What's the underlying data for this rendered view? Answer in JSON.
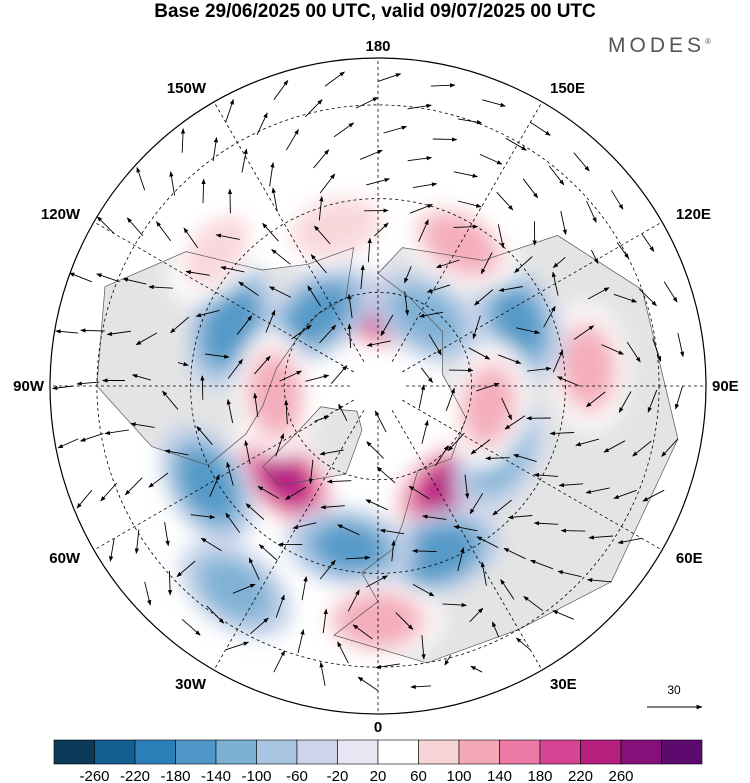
{
  "title": "Base 29/06/2025 00 UTC, valid 09/07/2025 00 UTC",
  "brand": "MODES",
  "brand_mark": "®",
  "longitude_labels": [
    {
      "text": "180",
      "lon": 180
    },
    {
      "text": "150E",
      "lon": 150
    },
    {
      "text": "120E",
      "lon": 120
    },
    {
      "text": "90E",
      "lon": 90
    },
    {
      "text": "60E",
      "lon": 60
    },
    {
      "text": "30E",
      "lon": 30
    },
    {
      "text": "0",
      "lon": 0
    },
    {
      "text": "30W",
      "lon": -30
    },
    {
      "text": "60W",
      "lon": -60
    },
    {
      "text": "90W",
      "lon": -90
    },
    {
      "text": "120W",
      "lon": -120
    },
    {
      "text": "150W",
      "lon": -150
    }
  ],
  "latitude_circles": [
    30,
    50,
    70
  ],
  "reference_vector": {
    "label": "30"
  },
  "colorbar": {
    "labels": [
      "-260",
      "-220",
      "-180",
      "-140",
      "-100",
      "-60",
      "-20",
      "20",
      "60",
      "100",
      "140",
      "180",
      "220",
      "260"
    ],
    "colors": [
      "#0b3a5a",
      "#125f90",
      "#2a7fb8",
      "#4f97c7",
      "#7bafd4",
      "#a9c5e2",
      "#cdd6eb",
      "#e8e6f2",
      "#ffffff",
      "#f8d4d8",
      "#f3a9b8",
      "#ea7aa5",
      "#d64594",
      "#b5207f",
      "#86107a",
      "#5c0a6e"
    ]
  },
  "anomalies": [
    {
      "lon": 175,
      "lat": 74,
      "value": 230
    },
    {
      "lon": -140,
      "lat": 70,
      "value": -160
    },
    {
      "lon": -112,
      "lat": 56,
      "value": -180
    },
    {
      "lon": -45,
      "lat": 62,
      "value": 230
    },
    {
      "lon": -60,
      "lat": 48,
      "value": -170
    },
    {
      "lon": 35,
      "lat": 64,
      "value": 240
    },
    {
      "lon": 20,
      "lat": 52,
      "value": -180
    },
    {
      "lon": -10,
      "lat": 55,
      "value": -150
    },
    {
      "lon": 0,
      "lat": 40,
      "value": 130
    },
    {
      "lon": -35,
      "lat": 37,
      "value": -120
    },
    {
      "lon": 95,
      "lat": 45,
      "value": 120
    },
    {
      "lon": 115,
      "lat": 57,
      "value": -150
    },
    {
      "lon": 150,
      "lat": 55,
      "value": 120
    },
    {
      "lon": -165,
      "lat": 55,
      "value": 90
    },
    {
      "lon": -85,
      "lat": 68,
      "value": 120
    },
    {
      "lon": 60,
      "lat": 60,
      "value": -110
    },
    {
      "lon": 145,
      "lat": 72,
      "value": -120
    },
    {
      "lon": 80,
      "lat": 66,
      "value": 110
    },
    {
      "lon": -130,
      "lat": 45,
      "value": 70
    }
  ]
}
